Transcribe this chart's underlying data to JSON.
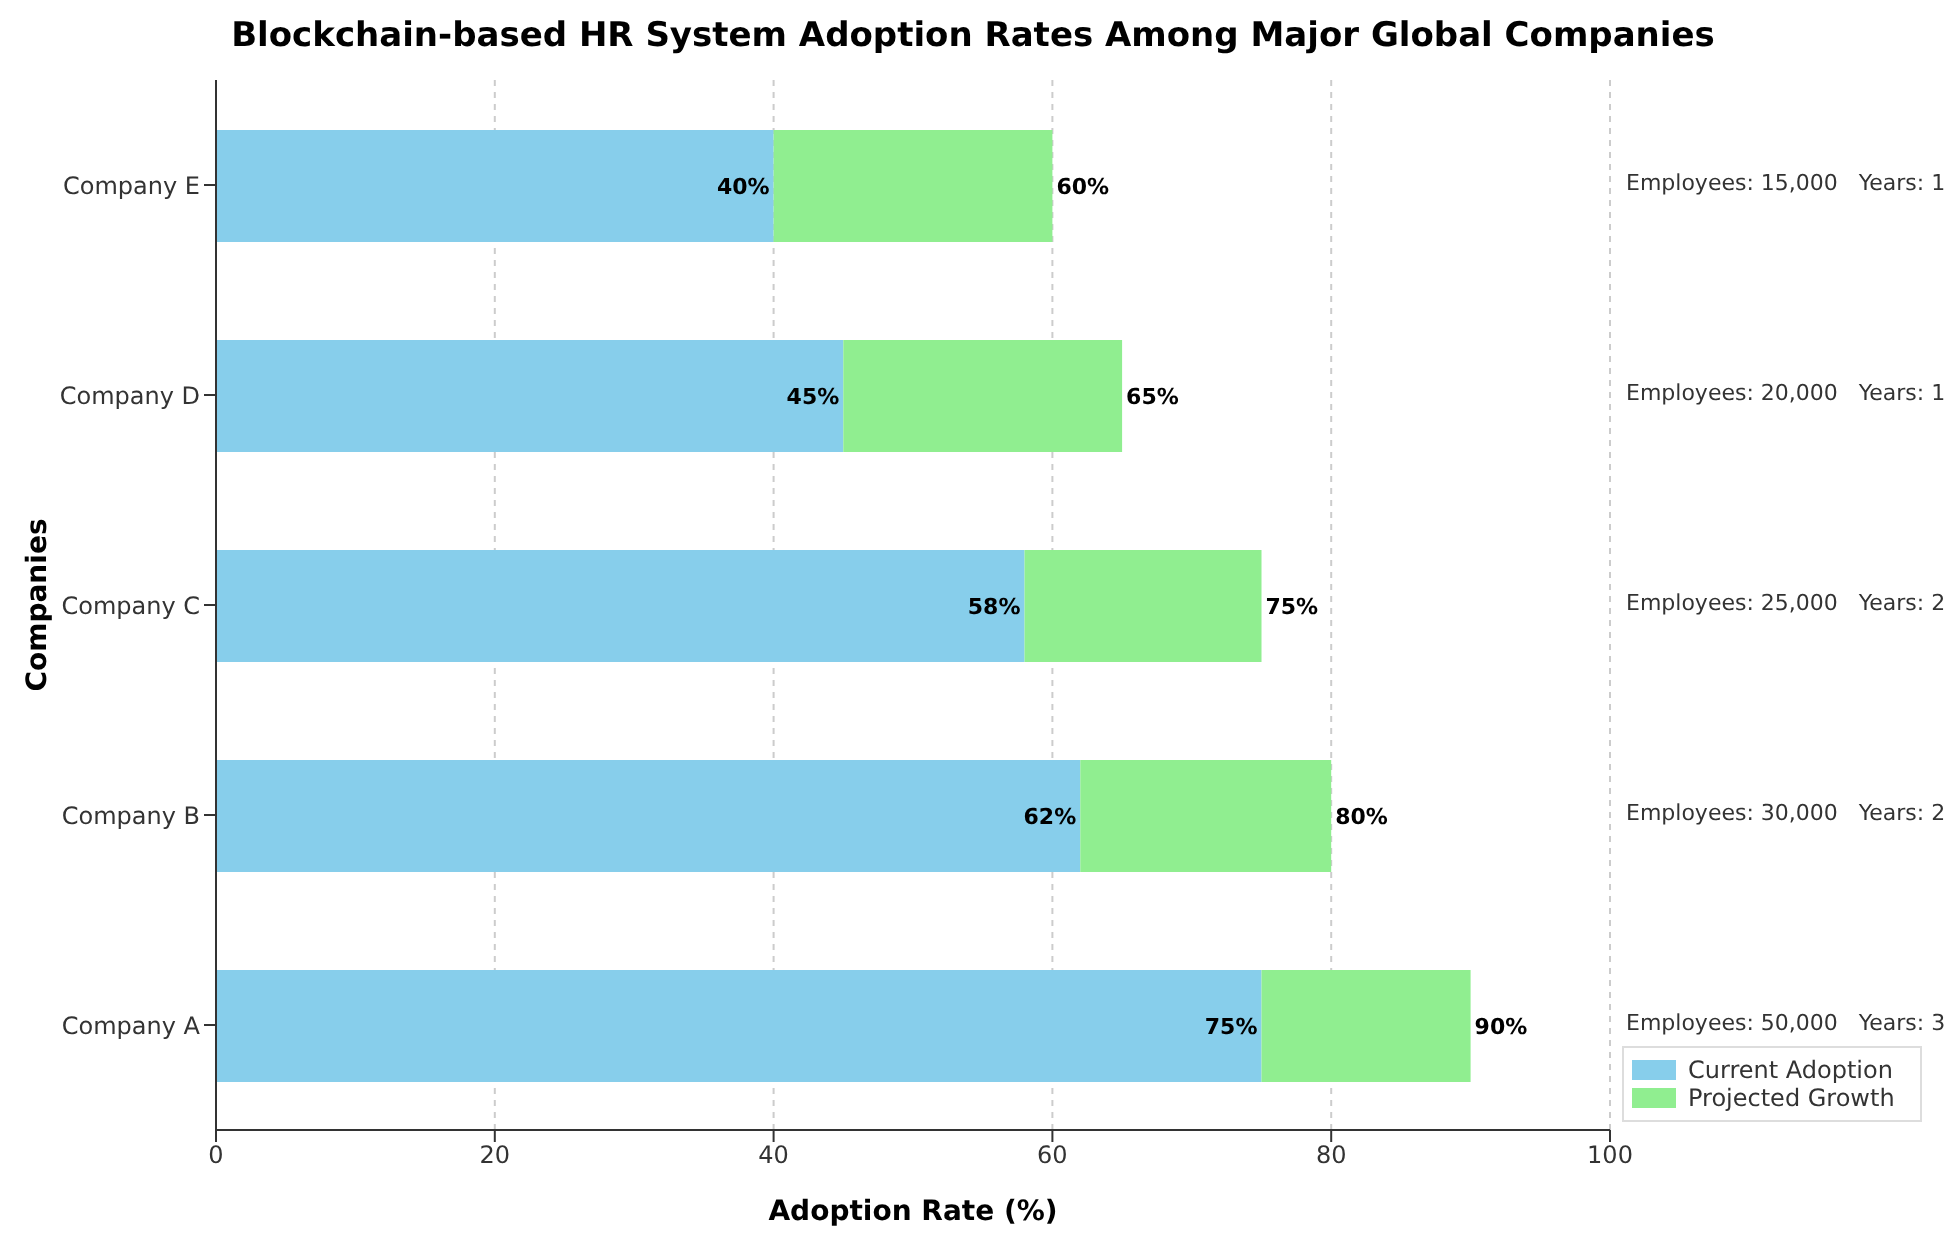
{
  "chart_data": {
    "type": "bar",
    "orientation": "horizontal",
    "stacked": true,
    "title": "Blockchain-based HR System Adoption Rates Among Major Global Companies",
    "xlabel": "Adoption Rate (%)",
    "ylabel": "Companies",
    "categories": [
      "Company E",
      "Company D",
      "Company C",
      "Company B",
      "Company A"
    ],
    "series": [
      {
        "name": "Current Adoption",
        "color": "#87ceeb",
        "values": [
          40,
          45,
          58,
          62,
          75
        ],
        "value_labels": [
          "40%",
          "45%",
          "58%",
          "62%",
          "75%"
        ]
      },
      {
        "name": "Projected Growth",
        "color": "#90ee90",
        "values": [
          20,
          20,
          17,
          18,
          15
        ]
      }
    ],
    "totals": [
      "60%",
      "65%",
      "75%",
      "80%",
      "90%"
    ],
    "xlim": [
      0,
      100
    ],
    "xticks": [
      0,
      20,
      40,
      60,
      80,
      100
    ],
    "grid": "x",
    "legend": "bottom right",
    "annotations": [
      "Employees: 15,000   Years: 1",
      "Employees: 20,000   Years: 1",
      "Employees: 25,000   Years: 2",
      "Employees: 30,000   Years: 2",
      "Employees: 50,000   Years: 3"
    ]
  }
}
